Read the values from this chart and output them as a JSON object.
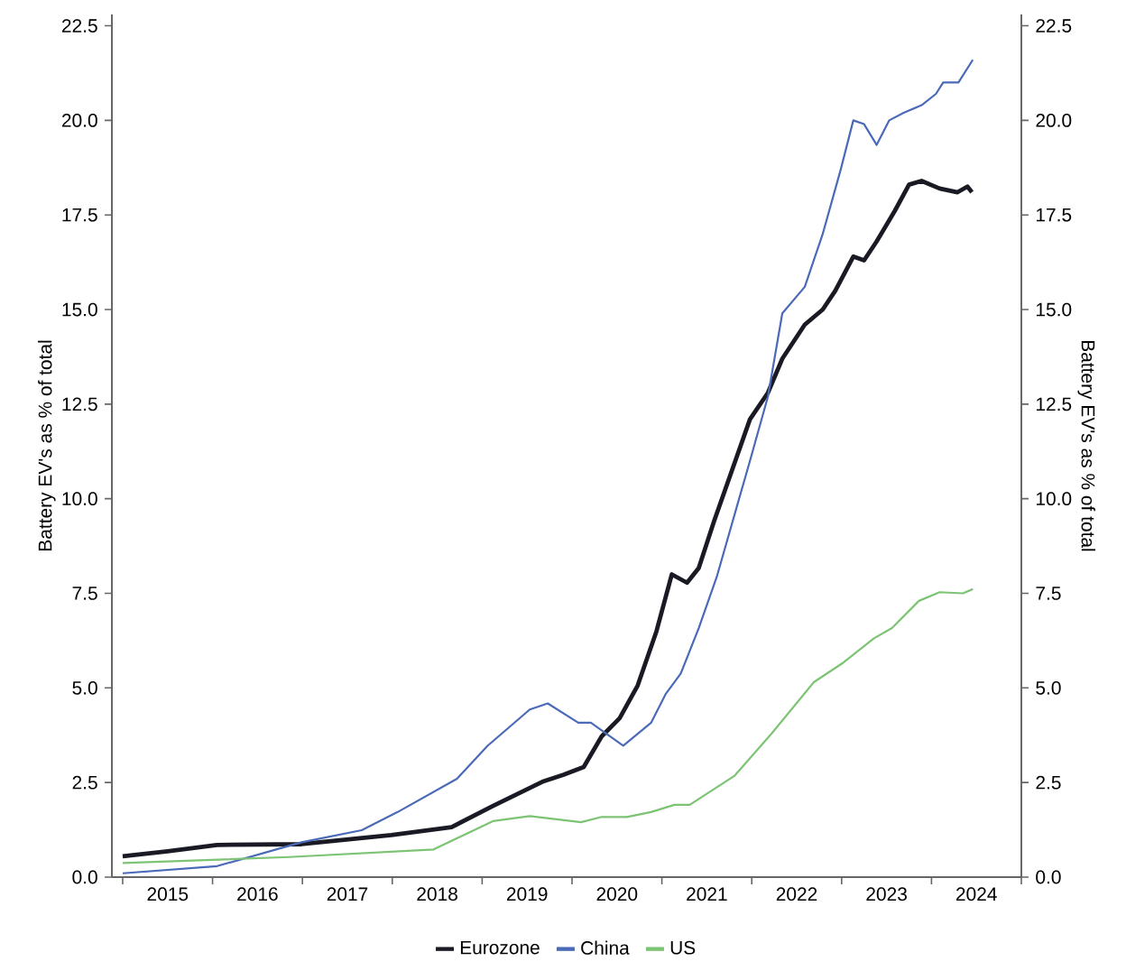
{
  "chart_data": {
    "type": "line",
    "ylabel": "Battery EV's as % of total",
    "y2label": "Battery EV's as % of total",
    "xlim": [
      2014.88,
      2025.0
    ],
    "xticks": [
      {
        "value": 2015,
        "label": null
      },
      {
        "value": 2016,
        "label": null
      },
      {
        "value": 2017,
        "label": null
      },
      {
        "value": 2018,
        "label": null
      },
      {
        "value": 2019,
        "label": null
      },
      {
        "value": 2020,
        "label": null
      },
      {
        "value": 2021,
        "label": null
      },
      {
        "value": 2022,
        "label": null
      },
      {
        "value": 2023,
        "label": null
      },
      {
        "value": 2024,
        "label": null
      },
      {
        "value": 2025,
        "label": null
      },
      {
        "value": 2015.5,
        "label": "2015"
      },
      {
        "value": 2016.5,
        "label": "2016"
      },
      {
        "value": 2017.5,
        "label": "2017"
      },
      {
        "value": 2018.5,
        "label": "2018"
      },
      {
        "value": 2019.5,
        "label": "2019"
      },
      {
        "value": 2020.5,
        "label": "2020"
      },
      {
        "value": 2021.5,
        "label": "2021"
      },
      {
        "value": 2022.5,
        "label": "2022"
      },
      {
        "value": 2023.5,
        "label": "2023"
      },
      {
        "value": 2024.5,
        "label": "2024"
      }
    ],
    "ylim": [
      0,
      22.8
    ],
    "yticks": [
      {
        "value": 0,
        "label": "0.0"
      },
      {
        "value": 2.5,
        "label": "2.5"
      },
      {
        "value": 5,
        "label": "5.0"
      },
      {
        "value": 7.5,
        "label": "7.5"
      },
      {
        "value": 10,
        "label": "10.0"
      },
      {
        "value": 12.5,
        "label": "12.5"
      },
      {
        "value": 15,
        "label": "15.0"
      },
      {
        "value": 17.5,
        "label": "17.5"
      },
      {
        "value": 20,
        "label": "20.0"
      },
      {
        "value": 22.5,
        "label": "22.5"
      }
    ],
    "y2lim": [
      0,
      22.8
    ],
    "y2ticks": [
      {
        "value": 0,
        "label": "0.0"
      },
      {
        "value": 2.5,
        "label": "2.5"
      },
      {
        "value": 5,
        "label": "5.0"
      },
      {
        "value": 7.5,
        "label": "7.5"
      },
      {
        "value": 10,
        "label": "10.0"
      },
      {
        "value": 12.5,
        "label": "12.5"
      },
      {
        "value": 15,
        "label": "15.0"
      },
      {
        "value": 17.5,
        "label": "17.5"
      },
      {
        "value": 20,
        "label": "20.0"
      },
      {
        "value": 22.5,
        "label": "22.5"
      }
    ],
    "legend": "bottom",
    "grid": false,
    "series": [
      {
        "name": "Eurozone",
        "color": "#1a1a24",
        "x": [
          2015.0,
          2015.5,
          2016.05,
          2016.99,
          2017.99,
          2018.66,
          2019.12,
          2019.67,
          2019.9,
          2020.13,
          2020.33,
          2020.53,
          2020.73,
          2020.94,
          2021.11,
          2021.28,
          2021.41,
          2021.58,
          2021.98,
          2022.18,
          2022.34,
          2022.59,
          2022.79,
          2022.93,
          2023.13,
          2023.25,
          2023.39,
          2023.59,
          2023.75,
          2023.89,
          2024.09,
          2024.29,
          2024.4,
          2024.45
        ],
        "values": [
          0.55,
          0.68,
          0.85,
          0.87,
          1.11,
          1.32,
          1.88,
          2.52,
          2.7,
          2.91,
          3.72,
          4.2,
          5.06,
          6.5,
          8.0,
          7.78,
          8.17,
          9.4,
          12.1,
          12.8,
          13.7,
          14.6,
          15.0,
          15.5,
          16.4,
          16.3,
          16.8,
          17.6,
          18.3,
          18.4,
          18.2,
          18.1,
          18.25,
          18.1
        ]
      },
      {
        "name": "China",
        "color": "#4a6ab8",
        "x": [
          2015.0,
          2016.05,
          2016.99,
          2017.66,
          2018.06,
          2018.72,
          2019.06,
          2019.53,
          2019.73,
          2020.07,
          2020.21,
          2020.57,
          2020.88,
          2021.04,
          2021.21,
          2021.41,
          2021.61,
          2021.84,
          2021.98,
          2022.18,
          2022.34,
          2022.59,
          2022.79,
          2022.99,
          2023.13,
          2023.25,
          2023.39,
          2023.53,
          2023.69,
          2023.89,
          2024.05,
          2024.13,
          2024.3,
          2024.46
        ],
        "values": [
          0.1,
          0.29,
          0.92,
          1.24,
          1.72,
          2.6,
          3.47,
          4.43,
          4.59,
          4.08,
          4.08,
          3.47,
          4.08,
          4.83,
          5.38,
          6.58,
          7.93,
          9.84,
          11.0,
          12.7,
          14.9,
          15.6,
          17.0,
          18.7,
          20.0,
          19.9,
          19.35,
          20.0,
          20.2,
          20.4,
          20.7,
          21.0,
          21.0,
          21.6
        ]
      },
      {
        "name": "US",
        "color": "#7cc474",
        "x": [
          2015.0,
          2016.85,
          2018.46,
          2019.12,
          2019.53,
          2020.1,
          2020.33,
          2020.61,
          2020.88,
          2021.14,
          2021.31,
          2021.81,
          2022.22,
          2022.69,
          2023.02,
          2023.36,
          2023.56,
          2023.86,
          2024.09,
          2024.35,
          2024.46
        ],
        "values": [
          0.37,
          0.53,
          0.73,
          1.48,
          1.61,
          1.45,
          1.59,
          1.59,
          1.72,
          1.91,
          1.91,
          2.68,
          3.79,
          5.15,
          5.67,
          6.31,
          6.58,
          7.3,
          7.53,
          7.5,
          7.61
        ]
      }
    ]
  }
}
